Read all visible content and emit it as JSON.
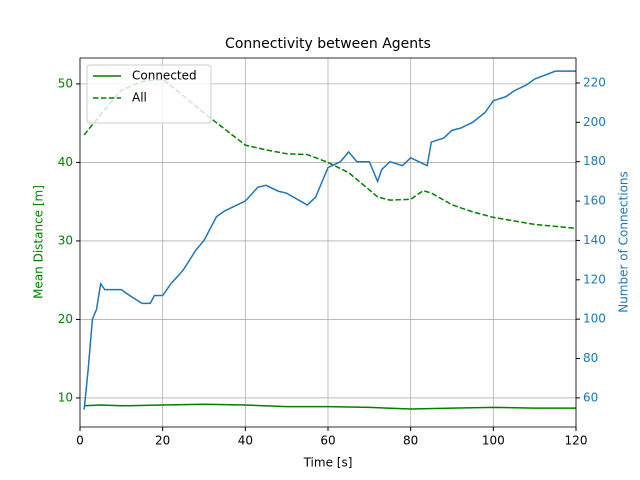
{
  "chart_data": {
    "type": "line",
    "title": "Connectivity between Agents",
    "xlabel": "Time [s]",
    "ylabel": "Mean Distance [m]",
    "y2label": "Number of Connections",
    "xlim": [
      0,
      120
    ],
    "xticks": [
      0,
      20,
      40,
      60,
      80,
      100,
      120
    ],
    "ylim": [
      6.3,
      53.3
    ],
    "yticks": [
      10,
      20,
      30,
      40,
      50
    ],
    "y2lim": [
      45.2,
      232.7
    ],
    "y2ticks": [
      60,
      80,
      100,
      120,
      140,
      160,
      180,
      200,
      220
    ],
    "grid": true,
    "legend": "upper left",
    "ycolor": "#008000",
    "y2color": "#1f77b4",
    "series": [
      {
        "name": "Connected",
        "color": "#008000",
        "linestyle": "solid",
        "axis": "y",
        "legend": true,
        "x": [
          1,
          5,
          10,
          20,
          30,
          40,
          50,
          60,
          70,
          80,
          90,
          100,
          110,
          120
        ],
        "values": [
          9.0,
          9.1,
          9.0,
          9.1,
          9.2,
          9.1,
          8.9,
          8.9,
          8.8,
          8.6,
          8.7,
          8.8,
          8.7,
          8.7
        ]
      },
      {
        "name": "All",
        "color": "#008000",
        "linestyle": "dashed",
        "axis": "y",
        "legend": true,
        "x": [
          1,
          5,
          10,
          15,
          20,
          25,
          30,
          40,
          45,
          50,
          55,
          60,
          65,
          70,
          72,
          75,
          80,
          83,
          85,
          90,
          95,
          100,
          110,
          120
        ],
        "values": [
          43.5,
          46.1,
          49.2,
          50.3,
          50.6,
          48.5,
          46.3,
          42.2,
          41.6,
          41.1,
          41.0,
          40.0,
          38.7,
          36.5,
          35.6,
          35.2,
          35.3,
          36.4,
          36.1,
          34.6,
          33.7,
          33.0,
          32.1,
          31.6
        ]
      },
      {
        "color": "#1f77b4",
        "linestyle": "solid",
        "axis": "y2",
        "legend": false,
        "x": [
          1,
          2,
          3,
          4,
          5,
          6,
          10,
          12,
          15,
          17,
          18,
          20,
          22,
          25,
          28,
          30,
          33,
          35,
          40,
          43,
          45,
          48,
          50,
          55,
          57,
          60,
          63,
          65,
          67,
          70,
          72,
          73,
          75,
          78,
          80,
          82,
          84,
          85,
          88,
          90,
          92,
          95,
          98,
          100,
          103,
          105,
          108,
          110,
          115,
          120
        ],
        "values": [
          54,
          75,
          100,
          105,
          118,
          115,
          115,
          112,
          108,
          108,
          112,
          112,
          118,
          125,
          135,
          140,
          152,
          155,
          160,
          167,
          168,
          165,
          164,
          158,
          162,
          177,
          180,
          185,
          180,
          180,
          170,
          176,
          180,
          178,
          182,
          180,
          178,
          190,
          192,
          196,
          197,
          200,
          205,
          211,
          213,
          216,
          219,
          222,
          226,
          226
        ]
      }
    ]
  }
}
